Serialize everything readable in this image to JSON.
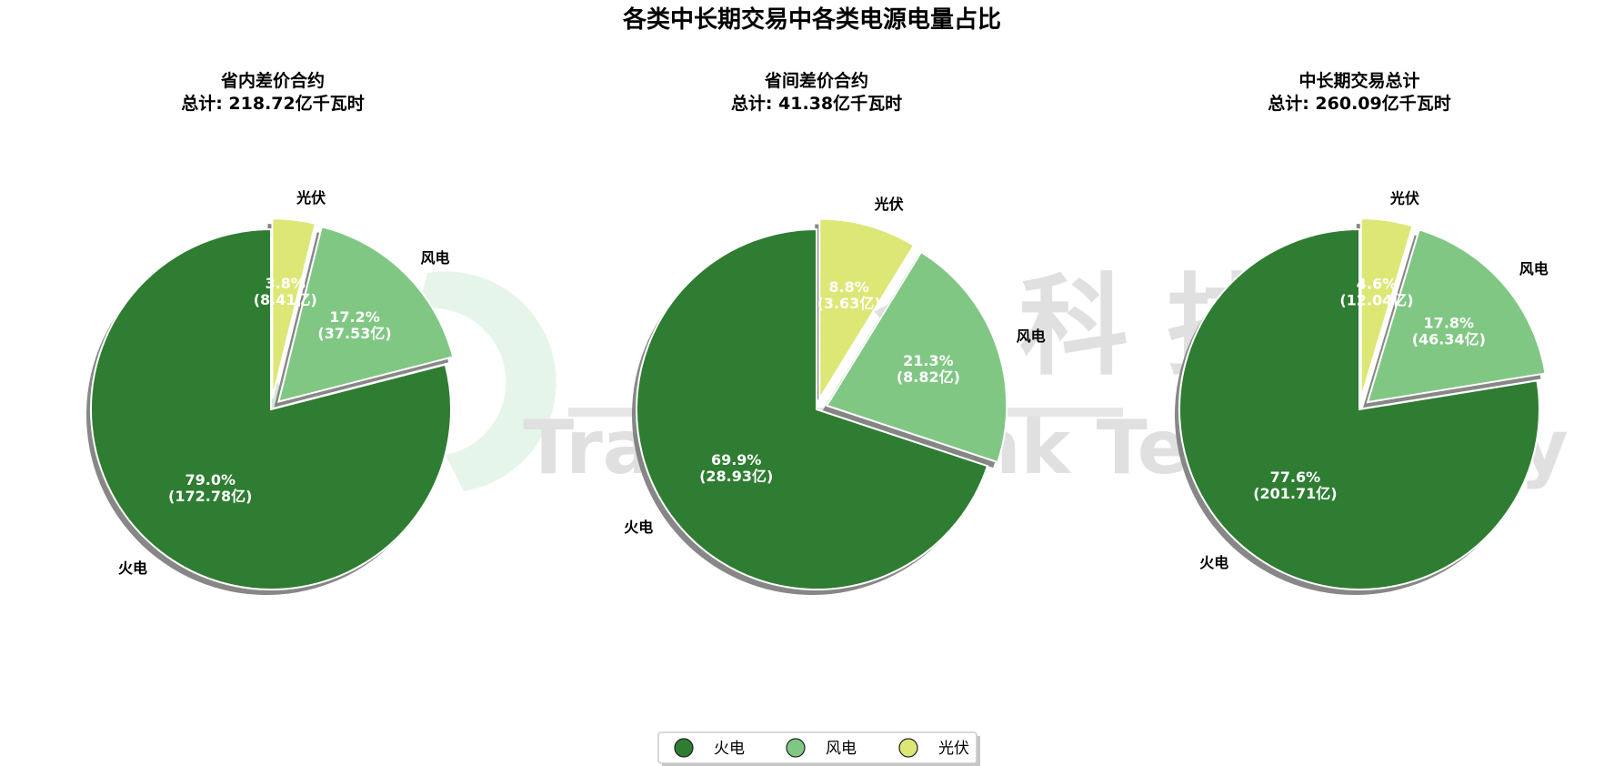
{
  "title": "各类中长期交易中各类电源电量占比",
  "watermark": {
    "cn": "飔  合  科  技",
    "en": "TradingThink Technology"
  },
  "legend": {
    "placement": "bottom-center",
    "items": [
      "火电",
      "风电",
      "光伏"
    ]
  },
  "colors": {
    "火电": "#2e7d32",
    "风电": "#81c784",
    "光伏": "#dce775"
  },
  "chart_data": [
    {
      "type": "pie",
      "title": "省内差价合约",
      "subtitle": "总计: 218.72亿千瓦时",
      "categories": [
        "火电",
        "风电",
        "光伏"
      ],
      "values": [
        172.78,
        37.53,
        8.41
      ],
      "percent_labels": [
        "79.0%",
        "17.2%",
        "3.8%"
      ],
      "value_labels": [
        "(172.78亿)",
        "(37.53亿)",
        "(8.41亿)"
      ]
    },
    {
      "type": "pie",
      "title": "省间差价合约",
      "subtitle": "总计: 41.38亿千瓦时",
      "categories": [
        "火电",
        "风电",
        "光伏"
      ],
      "values": [
        28.93,
        8.82,
        3.63
      ],
      "percent_labels": [
        "69.9%",
        "21.3%",
        "8.8%"
      ],
      "value_labels": [
        "(28.93亿)",
        "(8.82亿)",
        "(3.63亿)"
      ]
    },
    {
      "type": "pie",
      "title": "中长期交易总计",
      "subtitle": "总计: 260.09亿千瓦时",
      "categories": [
        "火电",
        "风电",
        "光伏"
      ],
      "values": [
        201.71,
        46.34,
        12.04
      ],
      "percent_labels": [
        "77.6%",
        "17.8%",
        "4.6%"
      ],
      "value_labels": [
        "(201.71亿)",
        "(46.34亿)",
        "(12.04亿)"
      ]
    }
  ]
}
